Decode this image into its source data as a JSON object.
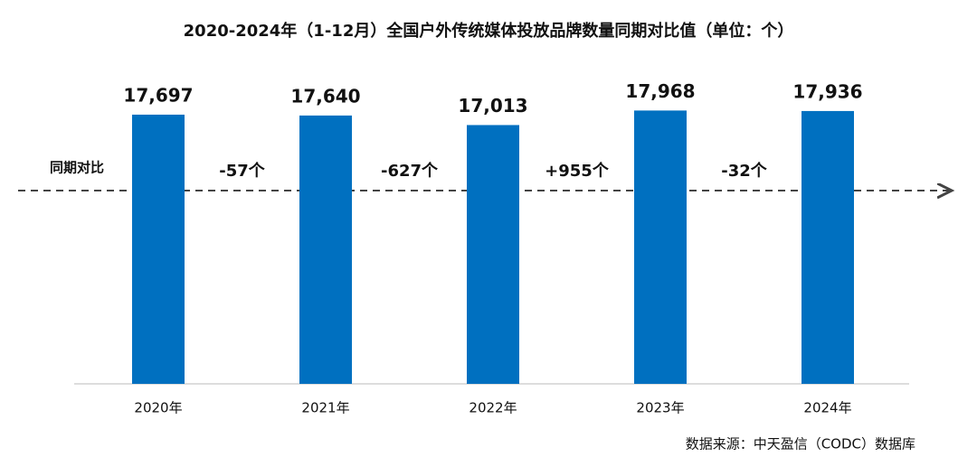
{
  "chart_data": {
    "type": "bar",
    "title": "2020-2024年（1-12月）全国户外传统媒体投放品牌数量同期对比值（单位：个）",
    "categories": [
      "2020年",
      "2021年",
      "2022年",
      "2023年",
      "2024年"
    ],
    "values": [
      17697,
      17640,
      17013,
      17968,
      17936
    ],
    "value_labels": [
      "17,697",
      "17,640",
      "17,013",
      "17,968",
      "17,936"
    ],
    "color": "#0070c0",
    "ylim": [
      0,
      19000
    ],
    "comparison_label": "同期对比",
    "changes": [
      {
        "value": -57,
        "label": "-57个"
      },
      {
        "value": -627,
        "label": "-627个"
      },
      {
        "value": 955,
        "label": "+955个"
      },
      {
        "value": -32,
        "label": "-32个"
      }
    ],
    "increase_color": "#e02020",
    "decrease_color": "#1aa34a",
    "source": "数据来源：中天盈信（CODC）数据库"
  }
}
